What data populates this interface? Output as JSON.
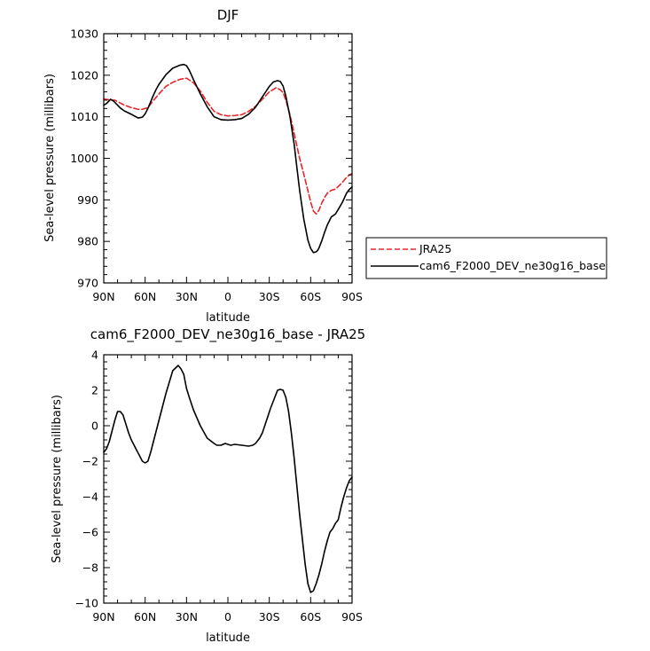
{
  "chart_data": [
    {
      "type": "line",
      "title": "DJF",
      "xlabel": "latitude",
      "ylabel": "Sea-level pressure (millibars)",
      "xlim": [
        90,
        -90
      ],
      "ylim": [
        970,
        1030
      ],
      "x_ticks": [
        {
          "value": 90,
          "label": "90N"
        },
        {
          "value": 60,
          "label": "60N"
        },
        {
          "value": 30,
          "label": "30N"
        },
        {
          "value": 0,
          "label": "0"
        },
        {
          "value": -30,
          "label": "30S"
        },
        {
          "value": -60,
          "label": "60S"
        },
        {
          "value": -90,
          "label": "90S"
        }
      ],
      "y_ticks": [
        {
          "value": 970,
          "label": "970"
        },
        {
          "value": 980,
          "label": "980"
        },
        {
          "value": 990,
          "label": "990"
        },
        {
          "value": 1000,
          "label": "1000"
        },
        {
          "value": 1010,
          "label": "1010"
        },
        {
          "value": 1020,
          "label": "1020"
        },
        {
          "value": 1030,
          "label": "1030"
        }
      ],
      "legend_position": "right",
      "series": [
        {
          "name": "JRA25",
          "color": "#e8242b",
          "style": "dashed",
          "x": [
            90,
            85,
            82,
            78,
            75,
            70,
            65,
            62,
            58,
            55,
            50,
            45,
            40,
            35,
            30,
            25,
            20,
            15,
            10,
            5,
            0,
            -5,
            -10,
            -15,
            -20,
            -25,
            -30,
            -35,
            -38,
            -40,
            -42,
            -45,
            -48,
            -50,
            -52,
            -55,
            -58,
            -60,
            -62,
            -64,
            -66,
            -68,
            -70,
            -72,
            -75,
            -78,
            -80,
            -83,
            -86,
            -88,
            -90
          ],
          "y": [
            1014.3,
            1014.0,
            1014.0,
            1013.3,
            1012.8,
            1012.2,
            1011.8,
            1011.8,
            1012.2,
            1013.5,
            1015.5,
            1017.3,
            1018.3,
            1019.0,
            1019.3,
            1018.2,
            1016.2,
            1013.5,
            1011.3,
            1010.5,
            1010.2,
            1010.3,
            1010.5,
            1011.3,
            1012.5,
            1014.2,
            1016.0,
            1017.0,
            1016.5,
            1015.8,
            1014.0,
            1010.5,
            1006.0,
            1003.0,
            1000.0,
            996.2,
            992.2,
            989.5,
            987.3,
            986.6,
            987.5,
            989.2,
            990.5,
            991.6,
            992.3,
            992.6,
            993.2,
            994.2,
            995.4,
            996.0,
            996.3
          ]
        },
        {
          "name": "cam6_F2000_DEV_ne30g16_base",
          "color": "#000000",
          "style": "solid",
          "x": [
            90,
            88,
            85,
            83,
            80,
            78,
            75,
            70,
            65,
            62,
            60,
            58,
            56,
            54,
            52,
            50,
            45,
            40,
            35,
            32,
            30,
            28,
            25,
            20,
            15,
            10,
            5,
            0,
            -5,
            -10,
            -15,
            -20,
            -25,
            -30,
            -33,
            -36,
            -38,
            -40,
            -42,
            -45,
            -48,
            -50,
            -52,
            -55,
            -58,
            -60,
            -62,
            -64,
            -65,
            -66,
            -68,
            -70,
            -72,
            -75,
            -78,
            -80,
            -83,
            -86,
            -88,
            -90
          ],
          "y": [
            1012.8,
            1013.2,
            1014.2,
            1013.8,
            1012.8,
            1012.1,
            1011.4,
            1010.6,
            1009.7,
            1009.9,
            1010.7,
            1012.0,
            1013.6,
            1015.2,
            1016.6,
            1017.8,
            1020.1,
            1021.7,
            1022.4,
            1022.6,
            1022.3,
            1021.2,
            1019.0,
            1015.5,
            1012.4,
            1010.0,
            1009.3,
            1009.2,
            1009.3,
            1009.6,
            1010.6,
            1012.3,
            1014.8,
            1017.3,
            1018.4,
            1018.7,
            1018.5,
            1017.4,
            1015.0,
            1010.0,
            1003.5,
            997.8,
            992.3,
            985.4,
            980.3,
            978.3,
            977.3,
            977.5,
            977.8,
            978.4,
            980.1,
            982.1,
            983.9,
            985.9,
            986.6,
            987.7,
            989.4,
            991.6,
            992.5,
            993.1
          ]
        }
      ]
    },
    {
      "type": "line",
      "title": "cam6_F2000_DEV_ne30g16_base - JRA25",
      "xlabel": "latitude",
      "ylabel": "Sea-level pressure (millibars)",
      "xlim": [
        90,
        -90
      ],
      "ylim": [
        -10,
        4
      ],
      "x_ticks": [
        {
          "value": 90,
          "label": "90N"
        },
        {
          "value": 60,
          "label": "60N"
        },
        {
          "value": 30,
          "label": "30N"
        },
        {
          "value": 0,
          "label": "0"
        },
        {
          "value": -30,
          "label": "30S"
        },
        {
          "value": -60,
          "label": "60S"
        },
        {
          "value": -90,
          "label": "90S"
        }
      ],
      "y_ticks": [
        {
          "value": -10,
          "label": "−10"
        },
        {
          "value": -8,
          "label": "−8"
        },
        {
          "value": -6,
          "label": "−6"
        },
        {
          "value": -4,
          "label": "−4"
        },
        {
          "value": -2,
          "label": "−2"
        },
        {
          "value": 0,
          "label": "0"
        },
        {
          "value": 2,
          "label": "2"
        },
        {
          "value": 4,
          "label": "4"
        }
      ],
      "series": [
        {
          "color": "#000000",
          "style": "solid",
          "x": [
            90,
            88,
            86,
            84,
            82,
            80,
            78,
            76,
            74,
            72,
            70,
            68,
            66,
            64,
            62,
            60,
            58,
            56,
            54,
            50,
            45,
            40,
            36,
            34,
            32,
            30,
            28,
            25,
            20,
            15,
            10,
            8,
            5,
            2,
            0,
            -2,
            -5,
            -10,
            -15,
            -18,
            -20,
            -23,
            -25,
            -28,
            -31,
            -34,
            -36,
            -38,
            -40,
            -42,
            -44,
            -46,
            -48,
            -50,
            -52,
            -54,
            -56,
            -58,
            -60,
            -62,
            -64,
            -66,
            -68,
            -70,
            -72,
            -74,
            -76,
            -78,
            -80,
            -82,
            -84,
            -86,
            -88,
            -90
          ],
          "y": [
            -1.5,
            -1.3,
            -0.9,
            -0.3,
            0.3,
            0.8,
            0.8,
            0.6,
            0.1,
            -0.4,
            -0.8,
            -1.1,
            -1.4,
            -1.7,
            -2.0,
            -2.1,
            -2.0,
            -1.5,
            -0.9,
            0.3,
            1.8,
            3.1,
            3.4,
            3.2,
            2.9,
            2.1,
            1.6,
            0.9,
            0.0,
            -0.7,
            -1.0,
            -1.1,
            -1.1,
            -1.0,
            -1.05,
            -1.1,
            -1.05,
            -1.1,
            -1.15,
            -1.1,
            -1.0,
            -0.7,
            -0.4,
            0.3,
            1.0,
            1.6,
            2.0,
            2.05,
            2.0,
            1.6,
            0.8,
            -0.4,
            -1.8,
            -3.4,
            -5.0,
            -6.4,
            -7.8,
            -8.9,
            -9.4,
            -9.3,
            -8.9,
            -8.4,
            -7.8,
            -7.1,
            -6.5,
            -6.0,
            -5.8,
            -5.5,
            -5.3,
            -4.6,
            -4.0,
            -3.5,
            -3.1,
            -2.9
          ]
        }
      ]
    }
  ]
}
